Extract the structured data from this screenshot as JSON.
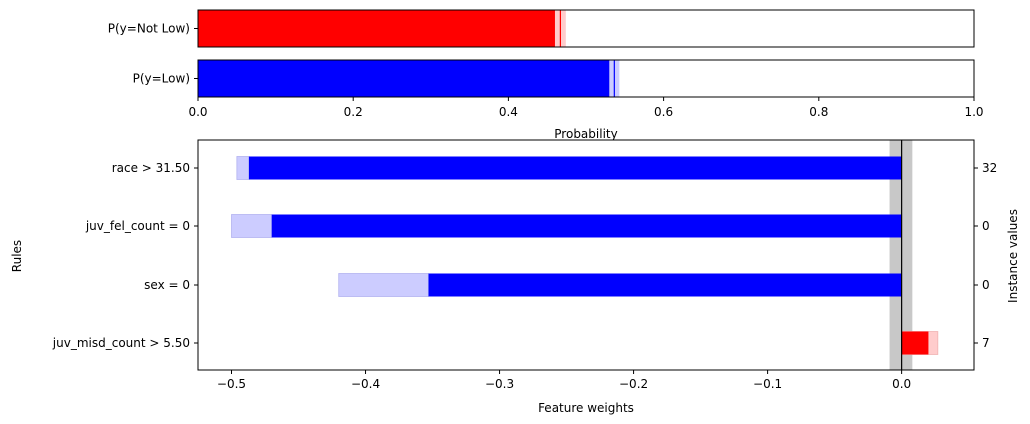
{
  "chart_data": [
    {
      "type": "bar",
      "orientation": "horizontal",
      "role": "probabilities",
      "categories": [
        "P(y=Not Low)",
        "P(y=Low)"
      ],
      "values": [
        0.46,
        0.53
      ],
      "uncertainty_high": [
        0.474,
        0.543
      ],
      "colors": [
        "#ff0000",
        "#0000ff"
      ],
      "light_colors": [
        "#ffcccc",
        "#ccccff"
      ],
      "xlabel": "Probability",
      "xlim": [
        0,
        1
      ],
      "xticks": [
        0,
        0.2,
        0.4,
        0.6,
        0.8,
        1
      ],
      "xtick_labels": [
        "0.0",
        "0.2",
        "0.4",
        "0.6",
        "0.8",
        "1.0"
      ]
    },
    {
      "type": "bar",
      "orientation": "horizontal",
      "role": "feature-weights",
      "categories": [
        "race > 31.50",
        "juv_fel_count = 0",
        "sex = 0",
        "juv_misd_count > 5.50"
      ],
      "values": [
        -0.487,
        -0.47,
        -0.353,
        0.02
      ],
      "uncertainty_low": [
        -0.496,
        -0.5,
        -0.42,
        0.0
      ],
      "uncertainty_high": [
        -0.487,
        -0.47,
        -0.353,
        0.027
      ],
      "instance_values": [
        "32",
        "0",
        "0",
        "7"
      ],
      "colors": {
        "negative": "#0000ff",
        "positive": "#ff0000"
      },
      "light_colors": {
        "negative": "#ccccff",
        "positive": "#ffcccc"
      },
      "baseline_band": [
        -0.009,
        0.008
      ],
      "baseline_color": "#c8c8c8",
      "xlabel": "Feature weights",
      "ylabel": "Rules",
      "y2label": "Instance values",
      "xlim": [
        -0.525,
        0.054
      ],
      "xticks": [
        -0.5,
        -0.4,
        -0.3,
        -0.2,
        -0.1,
        0.0
      ],
      "xtick_labels": [
        "−0.5",
        "−0.4",
        "−0.3",
        "−0.2",
        "−0.1",
        "0.0"
      ]
    }
  ]
}
